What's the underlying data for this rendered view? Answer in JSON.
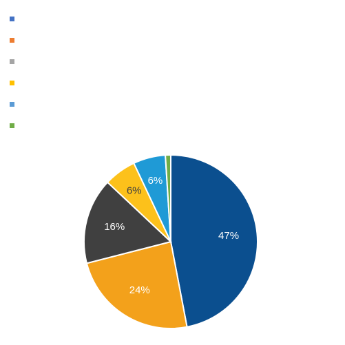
{
  "chart_data": {
    "type": "pie",
    "title": "",
    "legend_position": "top-left",
    "slices": [
      {
        "label": "",
        "value": 47,
        "display": "47%",
        "color": "#0b4f8f",
        "label_color": "#ffffff"
      },
      {
        "label": "",
        "value": 24,
        "display": "24%",
        "color": "#f3a11b",
        "label_color": "#ffffff"
      },
      {
        "label": "",
        "value": 16,
        "display": "16%",
        "color": "#404040",
        "label_color": "#ffffff"
      },
      {
        "label": "",
        "value": 6,
        "display": "6%",
        "color": "#fcc11b",
        "label_color": "#404040"
      },
      {
        "label": "",
        "value": 6,
        "display": "6%",
        "color": "#1f9ad6",
        "label_color": "#ffffff"
      },
      {
        "label": "",
        "value": 1,
        "display": "",
        "color": "#70ad47",
        "label_color": "#ffffff"
      }
    ],
    "legend_colors": [
      "#4472c4",
      "#ed7d31",
      "#a5a5a5",
      "#ffc000",
      "#5b9bd5",
      "#70ad47"
    ]
  }
}
